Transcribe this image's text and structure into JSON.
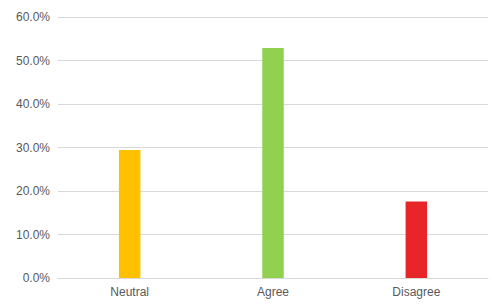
{
  "chart_data": {
    "type": "bar",
    "categories": [
      "Neutral",
      "Agree",
      "Disagree"
    ],
    "values": [
      29.4,
      52.9,
      17.6
    ],
    "colors": [
      "#FFC000",
      "#92D050",
      "#E8262A"
    ],
    "ylim": [
      0,
      60
    ],
    "yticks": [
      {
        "value": 0,
        "label": "0.0%"
      },
      {
        "value": 10,
        "label": "10.0%"
      },
      {
        "value": 20,
        "label": "20.0%"
      },
      {
        "value": 30,
        "label": "30.0%"
      },
      {
        "value": 40,
        "label": "40.0%"
      },
      {
        "value": 50,
        "label": "50.0%"
      },
      {
        "value": 60,
        "label": "60.0%"
      }
    ],
    "grid": true
  }
}
